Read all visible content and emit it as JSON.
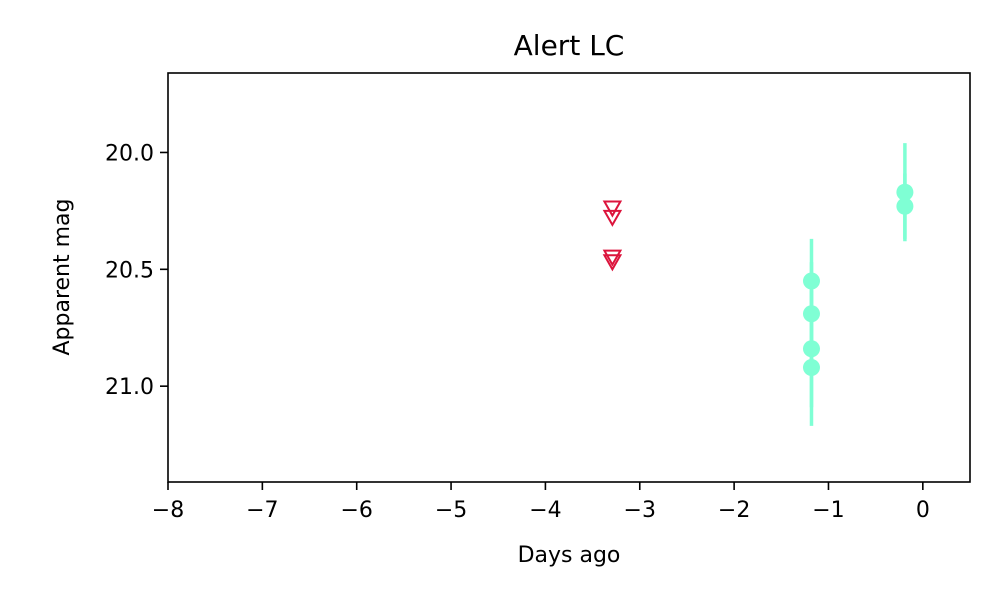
{
  "chart_data": {
    "type": "scatter",
    "title": "Alert LC",
    "xlabel": "Days ago",
    "ylabel": "Apparent mag",
    "xlim": [
      -8,
      0.5
    ],
    "ylim": [
      21.41,
      19.66
    ],
    "y_inverted": true,
    "x_ticks": [
      -8,
      -7,
      -6,
      -5,
      -4,
      -3,
      -2,
      -1,
      0
    ],
    "x_tick_labels": [
      "−8",
      "−7",
      "−6",
      "−5",
      "−4",
      "−3",
      "−2",
      "−1",
      "0"
    ],
    "y_ticks": [
      20.0,
      20.5,
      21.0
    ],
    "y_tick_labels": [
      "20.0",
      "20.5",
      "21.0"
    ],
    "grid": false,
    "legend": "none",
    "series": [
      {
        "marker": "filled-circle",
        "color": "#7FFFD4",
        "points": [
          {
            "x": -0.19,
            "y": 20.17,
            "err": 0.21
          },
          {
            "x": -0.19,
            "y": 20.23,
            "err": 0.14
          },
          {
            "x": -1.18,
            "y": 20.55,
            "err": 0.18
          },
          {
            "x": -1.18,
            "y": 20.69,
            "err": 0.22
          },
          {
            "x": -1.18,
            "y": 20.84,
            "err": 0.25
          },
          {
            "x": -1.18,
            "y": 20.92,
            "err": 0.25
          }
        ]
      },
      {
        "marker": "open-triangle-down",
        "color": "#DC143C",
        "points": [
          {
            "x": -3.29,
            "y": 20.24
          },
          {
            "x": -3.29,
            "y": 20.28
          },
          {
            "x": -3.29,
            "y": 20.45
          },
          {
            "x": -3.29,
            "y": 20.47
          }
        ]
      }
    ]
  }
}
